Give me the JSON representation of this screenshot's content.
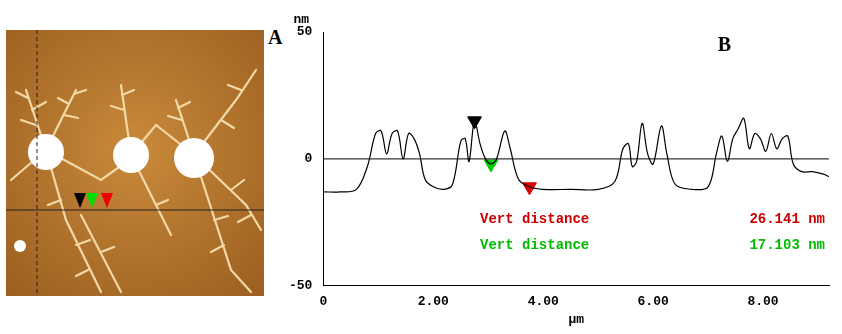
{
  "panel_labels": [
    "A",
    "B"
  ],
  "chart_data": {
    "type": "line",
    "x_label": "µm",
    "y_label": "nm",
    "color": "#000000",
    "x": [
      0,
      0.3,
      0.6,
      0.8,
      0.95,
      1.05,
      1.15,
      1.25,
      1.35,
      1.45,
      1.55,
      1.65,
      1.75,
      1.85,
      2.0,
      2.2,
      2.35,
      2.5,
      2.58,
      2.65,
      2.75,
      2.85,
      2.95,
      3.05,
      3.15,
      3.3,
      3.4,
      3.55,
      3.75,
      4.0,
      4.5,
      5.0,
      5.3,
      5.45,
      5.55,
      5.62,
      5.7,
      5.8,
      5.9,
      6.0,
      6.15,
      6.25,
      6.4,
      6.7,
      7.0,
      7.15,
      7.25,
      7.35,
      7.45,
      7.55,
      7.65,
      7.75,
      7.85,
      7.95,
      8.05,
      8.15,
      8.25,
      8.35,
      8.45,
      8.55,
      8.7,
      8.9,
      9.1,
      9.2
    ],
    "values": [
      -13,
      -13,
      -12,
      -3,
      10,
      11,
      2,
      10,
      11,
      0,
      10,
      8,
      2,
      -8,
      -11,
      -12,
      -10,
      7,
      8,
      -1,
      15,
      6,
      0,
      -2,
      0,
      11,
      4,
      -8,
      -11,
      -12,
      -12,
      -12,
      -9,
      4,
      6,
      -3,
      -1,
      14,
      2,
      -2,
      13,
      2,
      -10,
      -12,
      -11,
      2,
      9,
      -1,
      8,
      12,
      16,
      4,
      10,
      8,
      3,
      10,
      4,
      8,
      9,
      -2,
      -5,
      -5,
      -6,
      -7
    ],
    "xlim": [
      0,
      9.2
    ],
    "xticks": [
      0,
      {
        "value": 2,
        "label": "2.00"
      },
      {
        "value": 4,
        "label": "4.00"
      },
      {
        "value": 6,
        "label": "6.00"
      },
      {
        "value": 8,
        "label": "8.00"
      }
    ],
    "ylim": [
      -50,
      50
    ],
    "yticks": [
      -50,
      0,
      50
    ],
    "grid": false,
    "reference_y": 0,
    "markers": [
      {
        "x": 2.75,
        "y": 15,
        "color": "#000000"
      },
      {
        "x": 3.05,
        "y": -2,
        "color": "#00cc00"
      },
      {
        "x": 3.75,
        "y": -11,
        "color": "#dd0000"
      }
    ],
    "annotations": [
      {
        "text": "Vert distance",
        "value": "26.141 nm",
        "color": "#cc0000"
      },
      {
        "text": "Vert distance",
        "value": "17.103 nm",
        "color": "#00bb00"
      }
    ]
  }
}
